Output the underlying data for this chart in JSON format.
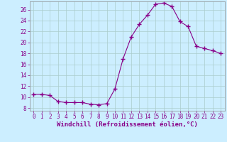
{
  "x": [
    0,
    1,
    2,
    3,
    4,
    5,
    6,
    7,
    8,
    9,
    10,
    11,
    12,
    13,
    14,
    15,
    16,
    17,
    18,
    19,
    20,
    21,
    22,
    23
  ],
  "y": [
    10.5,
    10.5,
    10.3,
    9.2,
    9.0,
    9.0,
    9.0,
    8.7,
    8.6,
    8.8,
    11.5,
    17.0,
    21.0,
    23.3,
    25.0,
    27.0,
    27.2,
    26.6,
    23.8,
    22.9,
    19.3,
    18.9,
    18.5,
    18.0
  ],
  "line_color": "#880088",
  "marker": "+",
  "marker_size": 4,
  "bg_color": "#cceeff",
  "grid_color": "#aacccc",
  "xlabel": "Windchill (Refroidissement éolien,°C)",
  "xlabel_color": "#880088",
  "tick_color": "#880088",
  "spine_color": "#888888",
  "ylim": [
    7.5,
    27.5
  ],
  "yticks": [
    8,
    10,
    12,
    14,
    16,
    18,
    20,
    22,
    24,
    26
  ],
  "xlim": [
    -0.5,
    23.5
  ],
  "xticks": [
    0,
    1,
    2,
    3,
    4,
    5,
    6,
    7,
    8,
    9,
    10,
    11,
    12,
    13,
    14,
    15,
    16,
    17,
    18,
    19,
    20,
    21,
    22,
    23
  ],
  "tick_fontsize": 5.5,
  "xlabel_fontsize": 6.5
}
